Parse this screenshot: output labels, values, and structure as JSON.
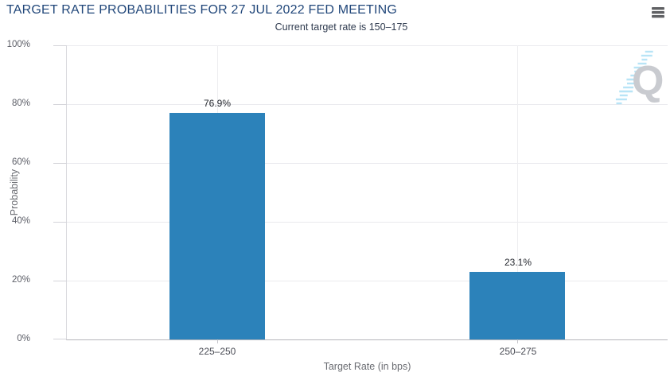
{
  "header": {
    "title": "TARGET RATE PROBABILITIES FOR 27 JUL 2022 FED MEETING",
    "menu_icon": "hamburger-icon"
  },
  "chart_data": {
    "type": "bar",
    "title": "TARGET RATE PROBABILITIES FOR 27 JUL 2022 FED MEETING",
    "subtitle": "Current target rate is 150–175",
    "categories": [
      "225–250",
      "250–275"
    ],
    "values": [
      76.9,
      23.1
    ],
    "value_labels": [
      "76.9%",
      "23.1%"
    ],
    "xlabel": "Target Rate (in bps)",
    "ylabel": "Probability",
    "ylim": [
      0,
      100
    ],
    "ytick_step": 20,
    "ytick_labels": [
      "0%",
      "20%",
      "40%",
      "60%",
      "80%",
      "100%"
    ],
    "grid": true,
    "legend": "none",
    "watermark_icon": "quikstrike-q-logo"
  },
  "colors": {
    "title": "#21477a",
    "subtitle": "#2e3a4e",
    "bar": "#2c82ba",
    "h_grid": "#eaeaee",
    "v_grid": "#ededf0",
    "axis_line": "#b6b6bb",
    "tick_label": "#5b5d66",
    "axis_title": "#6a6c72",
    "data_label": "#24272e",
    "menu_icon": "#606164",
    "watermark_q": "#c9cbd0",
    "watermark_dash": "#b8e4f6"
  }
}
